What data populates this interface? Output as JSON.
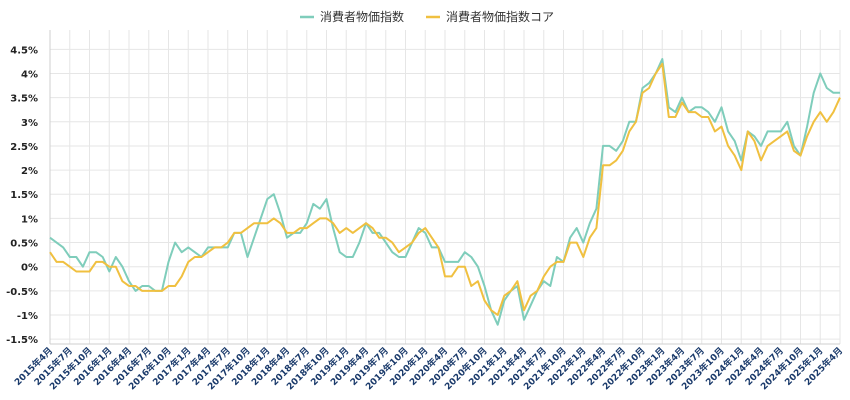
{
  "chart_data": {
    "type": "line",
    "title": "",
    "xlabel": "",
    "ylabel": "",
    "ylim": [
      -1.6,
      4.9
    ],
    "yticks": [
      -1.5,
      -1,
      -0.5,
      0,
      0.5,
      1,
      1.5,
      2,
      2.5,
      3,
      3.5,
      4,
      4.5
    ],
    "ytick_labels": [
      "-1.5%",
      "-1%",
      "-0.5%",
      "0%",
      "0.5%",
      "1%",
      "1.5%",
      "2%",
      "2.5%",
      "3%",
      "3.5%",
      "4%",
      "4.5%"
    ],
    "grid": true,
    "legend_position": "top-center",
    "categories": [
      "2015年4月",
      "2015年5月",
      "2015年6月",
      "2015年7月",
      "2015年8月",
      "2015年9月",
      "2015年10月",
      "2015年11月",
      "2015年12月",
      "2016年1月",
      "2016年2月",
      "2016年3月",
      "2016年4月",
      "2016年5月",
      "2016年6月",
      "2016年7月",
      "2016年8月",
      "2016年9月",
      "2016年10月",
      "2016年11月",
      "2016年12月",
      "2017年1月",
      "2017年2月",
      "2017年3月",
      "2017年4月",
      "2017年5月",
      "2017年6月",
      "2017年7月",
      "2017年8月",
      "2017年9月",
      "2017年10月",
      "2017年11月",
      "2017年12月",
      "2018年1月",
      "2018年2月",
      "2018年3月",
      "2018年4月",
      "2018年5月",
      "2018年6月",
      "2018年7月",
      "2018年8月",
      "2018年9月",
      "2018年10月",
      "2018年11月",
      "2018年12月",
      "2019年1月",
      "2019年2月",
      "2019年3月",
      "2019年4月",
      "2019年5月",
      "2019年6月",
      "2019年7月",
      "2019年8月",
      "2019年9月",
      "2019年10月",
      "2019年11月",
      "2019年12月",
      "2020年1月",
      "2020年2月",
      "2020年3月",
      "2020年4月",
      "2020年5月",
      "2020年6月",
      "2020年7月",
      "2020年8月",
      "2020年9月",
      "2020年10月",
      "2020年11月",
      "2020年12月",
      "2021年1月",
      "2021年2月",
      "2021年3月",
      "2021年4月",
      "2021年5月",
      "2021年6月",
      "2021年7月",
      "2021年8月",
      "2021年9月",
      "2021年10月",
      "2021年11月",
      "2021年12月",
      "2022年1月",
      "2022年2月",
      "2022年3月",
      "2022年4月",
      "2022年5月",
      "2022年6月",
      "2022年7月",
      "2022年8月",
      "2022年9月",
      "2022年10月",
      "2022年11月",
      "2022年12月",
      "2023年1月",
      "2023年2月",
      "2023年3月",
      "2023年4月",
      "2023年5月",
      "2023年6月",
      "2023年7月",
      "2023年8月",
      "2023年9月",
      "2023年10月",
      "2023年11月",
      "2023年12月",
      "2024年1月",
      "2024年2月",
      "2024年3月",
      "2024年4月",
      "2024年5月",
      "2024年6月",
      "2024年7月",
      "2024年8月",
      "2024年9月",
      "2024年10月",
      "2024年11月",
      "2024年12月",
      "2025年1月",
      "2025年2月",
      "2025年3月",
      "2025年4月"
    ],
    "xtick_labels": [
      "2015年4月",
      "2015年7月",
      "2015年10月",
      "2016年1月",
      "2016年4月",
      "2016年7月",
      "2016年10月",
      "2017年1月",
      "2017年4月",
      "2017年7月",
      "2017年10月",
      "2018年1月",
      "2018年4月",
      "2018年7月",
      "2018年10月",
      "2019年1月",
      "2019年4月",
      "2019年7月",
      "2019年10月",
      "2020年1月",
      "2020年4月",
      "2020年7月",
      "2020年10月",
      "2021年1月",
      "2021年4月",
      "2021年7月",
      "2021年10月",
      "2022年1月",
      "2022年4月",
      "2022年7月",
      "2022年10月",
      "2023年1月",
      "2023年4月",
      "2023年7月",
      "2023年10月",
      "2024年1月",
      "2024年4月",
      "2024年7月",
      "2024年10月",
      "2025年1月",
      "2025年4月"
    ],
    "series": [
      {
        "name": "消費者物価指数",
        "color": "#7fcdbb",
        "values": [
          0.6,
          0.5,
          0.4,
          0.2,
          0.2,
          0.0,
          0.3,
          0.3,
          0.2,
          -0.1,
          0.2,
          0.0,
          -0.3,
          -0.5,
          -0.4,
          -0.4,
          -0.5,
          -0.5,
          0.1,
          0.5,
          0.3,
          0.4,
          0.3,
          0.2,
          0.4,
          0.4,
          0.4,
          0.4,
          0.7,
          0.7,
          0.2,
          0.6,
          1.0,
          1.4,
          1.5,
          1.1,
          0.6,
          0.7,
          0.7,
          0.9,
          1.3,
          1.2,
          1.4,
          0.8,
          0.3,
          0.2,
          0.2,
          0.5,
          0.9,
          0.7,
          0.7,
          0.5,
          0.3,
          0.2,
          0.2,
          0.5,
          0.8,
          0.7,
          0.4,
          0.4,
          0.1,
          0.1,
          0.1,
          0.3,
          0.2,
          0.0,
          -0.4,
          -0.9,
          -1.2,
          -0.7,
          -0.5,
          -0.4,
          -1.1,
          -0.8,
          -0.5,
          -0.3,
          -0.4,
          0.2,
          0.1,
          0.6,
          0.8,
          0.5,
          0.9,
          1.2,
          2.5,
          2.5,
          2.4,
          2.6,
          3.0,
          3.0,
          3.7,
          3.8,
          4.0,
          4.3,
          3.3,
          3.2,
          3.5,
          3.2,
          3.3,
          3.3,
          3.2,
          3.0,
          3.3,
          2.8,
          2.6,
          2.2,
          2.8,
          2.7,
          2.5,
          2.8,
          2.8,
          2.8,
          3.0,
          2.5,
          2.3,
          2.9,
          3.6,
          4.0,
          3.7,
          3.6,
          3.6
        ]
      },
      {
        "name": "消費者物価指数コア",
        "color": "#f0c040",
        "values": [
          0.3,
          0.1,
          0.1,
          0.0,
          -0.1,
          -0.1,
          -0.1,
          0.1,
          0.1,
          0.0,
          0.0,
          -0.3,
          -0.4,
          -0.4,
          -0.5,
          -0.5,
          -0.5,
          -0.5,
          -0.4,
          -0.4,
          -0.2,
          0.1,
          0.2,
          0.2,
          0.3,
          0.4,
          0.4,
          0.5,
          0.7,
          0.7,
          0.8,
          0.9,
          0.9,
          0.9,
          1.0,
          0.9,
          0.7,
          0.7,
          0.8,
          0.8,
          0.9,
          1.0,
          1.0,
          0.9,
          0.7,
          0.8,
          0.7,
          0.8,
          0.9,
          0.8,
          0.6,
          0.6,
          0.5,
          0.3,
          0.4,
          0.5,
          0.7,
          0.8,
          0.6,
          0.4,
          -0.2,
          -0.2,
          0.0,
          0.0,
          -0.4,
          -0.3,
          -0.7,
          -0.9,
          -1.0,
          -0.6,
          -0.5,
          -0.3,
          -0.9,
          -0.6,
          -0.5,
          -0.2,
          0.0,
          0.1,
          0.1,
          0.5,
          0.5,
          0.2,
          0.6,
          0.8,
          2.1,
          2.1,
          2.2,
          2.4,
          2.8,
          3.0,
          3.6,
          3.7,
          4.0,
          4.2,
          3.1,
          3.1,
          3.4,
          3.2,
          3.2,
          3.1,
          3.1,
          2.8,
          2.9,
          2.5,
          2.3,
          2.0,
          2.8,
          2.6,
          2.2,
          2.5,
          2.6,
          2.7,
          2.8,
          2.4,
          2.3,
          2.7,
          3.0,
          3.2,
          3.0,
          3.2,
          3.5
        ]
      }
    ]
  }
}
